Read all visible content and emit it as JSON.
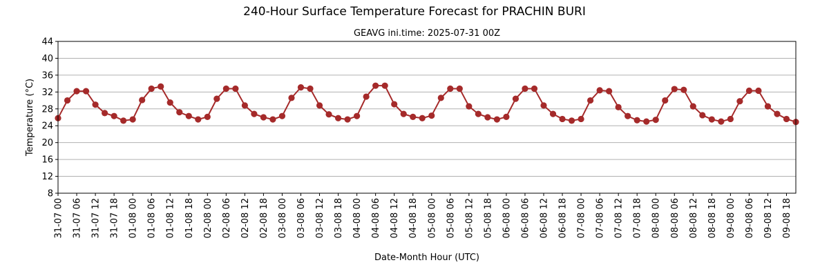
{
  "chart_data": {
    "type": "line",
    "title": "240-Hour Surface Temperature Forecast for PRACHIN BURI",
    "subtitle": "GEAVG ini.time: 2025-07-31 00Z",
    "xlabel": "Date-Month Hour (UTC)",
    "ylabel": "Temperature (°C)",
    "ylim": [
      8,
      44
    ],
    "yticks": [
      8,
      12,
      16,
      20,
      24,
      28,
      32,
      36,
      40,
      44
    ],
    "grid": true,
    "x_step_hours": 3,
    "tick_every_hours": 6,
    "xticks": [
      "31-07 00",
      "31-07 06",
      "31-07 12",
      "31-07 18",
      "01-08 00",
      "01-08 06",
      "01-08 12",
      "01-08 18",
      "02-08 00",
      "02-08 06",
      "02-08 12",
      "02-08 18",
      "03-08 00",
      "03-08 06",
      "03-08 12",
      "03-08 18",
      "04-08 00",
      "04-08 06",
      "04-08 12",
      "04-08 18",
      "05-08 00",
      "05-08 06",
      "05-08 12",
      "05-08 18",
      "06-08 00",
      "06-08 06",
      "06-08 12",
      "06-08 18",
      "07-08 00",
      "07-08 06",
      "07-08 12",
      "07-08 18",
      "08-08 00",
      "08-08 06",
      "08-08 12",
      "08-08 18",
      "09-08 00",
      "09-08 06",
      "09-08 12",
      "09-08 18"
    ],
    "series": [
      {
        "color": "#a52a2a",
        "values": [
          25.8,
          30.0,
          32.2,
          32.2,
          29.0,
          27.0,
          26.3,
          25.2,
          25.5,
          30.1,
          32.8,
          33.3,
          29.5,
          27.2,
          26.3,
          25.5,
          26.1,
          30.4,
          32.8,
          32.8,
          28.8,
          26.8,
          26.0,
          25.5,
          26.3,
          30.6,
          33.1,
          32.8,
          28.8,
          26.7,
          25.8,
          25.5,
          26.3,
          30.9,
          33.5,
          33.5,
          29.1,
          26.8,
          26.1,
          25.8,
          26.4,
          30.6,
          32.8,
          32.8,
          28.6,
          26.8,
          26.0,
          25.5,
          26.1,
          30.4,
          32.8,
          32.8,
          28.8,
          26.8,
          25.6,
          25.2,
          25.6,
          30.0,
          32.4,
          32.2,
          28.4,
          26.3,
          25.3,
          25.0,
          25.4,
          30.0,
          32.7,
          32.5,
          28.6,
          26.5,
          25.5,
          25.0,
          25.6,
          29.8,
          32.3,
          32.3,
          28.6,
          26.8,
          25.6,
          24.9
        ]
      }
    ]
  }
}
